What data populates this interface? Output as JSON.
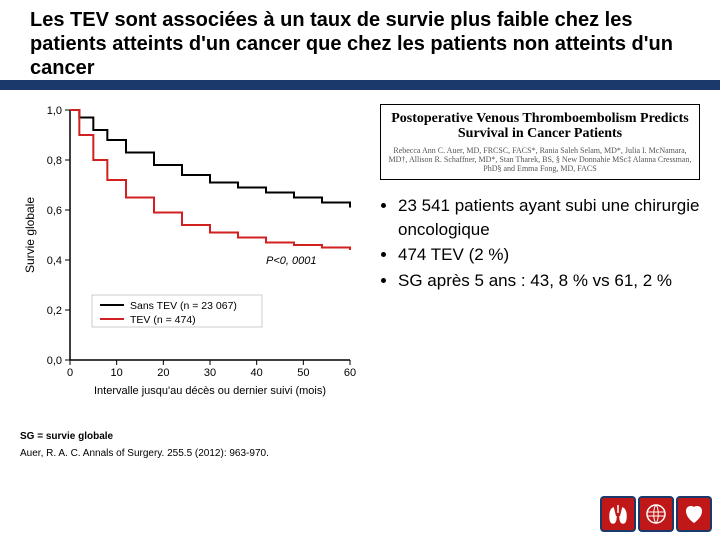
{
  "title": "Les TEV sont associées à un taux de survie plus faible chez les patients atteints d'un cancer que chez les patients non atteints d'un cancer",
  "citation": {
    "title": "Postoperative Venous Thromboembolism Predicts Survival in Cancer Patients",
    "authors": "Rebecca Ann C. Auer, MD, FRCSC, FACS*, Rania Saleh Selam, MD*, Julia I. McNamara, MD†, Allison R. Schaffner, MD*, Stan Tharek, BS, § New Donnahie MSc‡ Alanna Cressman, PhD§ and Emma Fong, MD, FACS"
  },
  "chart": {
    "type": "line",
    "ylabel": "Survie globale",
    "xlabel": "Intervalle jusqu'au décès ou dernier suivi (mois)",
    "xlim": [
      0,
      60
    ],
    "ylim": [
      0,
      1.0
    ],
    "xticks": [
      0,
      10,
      20,
      30,
      40,
      50,
      60
    ],
    "yticks": [
      "0,0",
      "0,2",
      "0,4",
      "0,6",
      "0,8",
      "1,0"
    ],
    "p_value": "P<0, 0001",
    "series": [
      {
        "name": "sans",
        "label": "Sans TEV (n = 23 067)",
        "color": "#000000",
        "points": [
          [
            0,
            1.0
          ],
          [
            2,
            0.97
          ],
          [
            5,
            0.92
          ],
          [
            8,
            0.88
          ],
          [
            12,
            0.83
          ],
          [
            18,
            0.78
          ],
          [
            24,
            0.74
          ],
          [
            30,
            0.71
          ],
          [
            36,
            0.69
          ],
          [
            42,
            0.67
          ],
          [
            48,
            0.65
          ],
          [
            54,
            0.63
          ],
          [
            60,
            0.61
          ]
        ]
      },
      {
        "name": "tev",
        "label": "TEV (n = 474)",
        "color": "#d02020",
        "points": [
          [
            0,
            1.0
          ],
          [
            2,
            0.9
          ],
          [
            5,
            0.8
          ],
          [
            8,
            0.72
          ],
          [
            12,
            0.65
          ],
          [
            18,
            0.59
          ],
          [
            24,
            0.54
          ],
          [
            30,
            0.51
          ],
          [
            36,
            0.49
          ],
          [
            42,
            0.47
          ],
          [
            48,
            0.46
          ],
          [
            54,
            0.45
          ],
          [
            60,
            0.44
          ]
        ]
      }
    ],
    "line_width": 2,
    "background_color": "#ffffff",
    "axis_color": "#000000",
    "font_size": 11
  },
  "bullets": [
    "23 541 patients ayant subi une chirurgie oncologique",
    "474 TEV (2 %)",
    "SG après 5 ans : 43, 8 % vs 61, 2 %"
  ],
  "footnote1": "SG = survie globale",
  "footnote2": "Auer, R. A. C. Annals of Surgery. 255.5 (2012): 963-970."
}
